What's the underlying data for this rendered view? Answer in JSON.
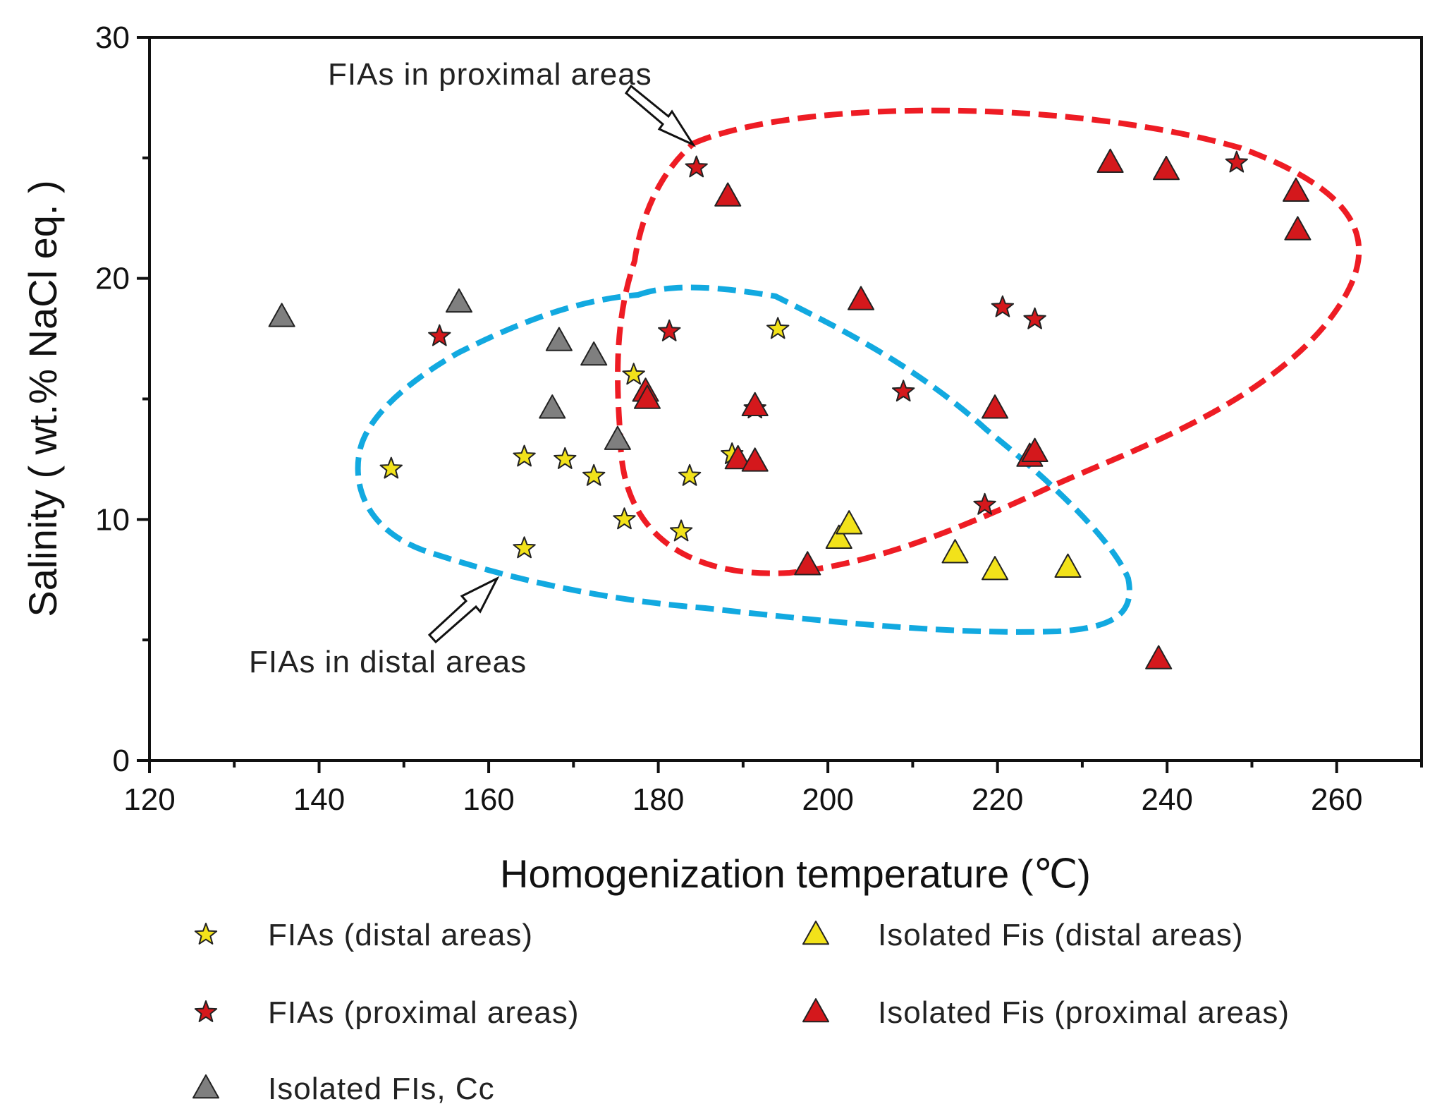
{
  "chart_data": {
    "type": "scatter",
    "xlabel": "Homogenization temperature (℃)",
    "ylabel": "Salinity ( wt.% NaCl eq. )",
    "xlim": [
      120,
      270
    ],
    "ylim": [
      0,
      30
    ],
    "xticks": [
      120,
      140,
      160,
      180,
      200,
      220,
      240,
      260
    ],
    "yticks": [
      0,
      10,
      20,
      30
    ],
    "xtick_labels": [
      "120",
      "140",
      "160",
      "180",
      "200",
      "220",
      "240",
      "260"
    ],
    "ytick_labels": [
      "0",
      "10",
      "20",
      "30"
    ],
    "annotations": {
      "proximal": "FIAs in proximal areas",
      "distal": "FIAs in distal areas"
    },
    "series": [
      {
        "name": "FIAs (distal areas)",
        "marker": "star",
        "color": "#f2e21a",
        "points": [
          [
            148.5,
            12.1
          ],
          [
            164.2,
            12.6
          ],
          [
            169.0,
            12.5
          ],
          [
            172.4,
            11.8
          ],
          [
            164.2,
            8.8
          ],
          [
            176.0,
            10.0
          ],
          [
            177.1,
            16.0
          ],
          [
            182.7,
            9.5
          ],
          [
            183.7,
            11.8
          ],
          [
            188.7,
            12.7
          ],
          [
            194.1,
            17.9
          ]
        ]
      },
      {
        "name": "FIAs (proximal areas)",
        "marker": "star",
        "color": "#d4181c",
        "points": [
          [
            154.2,
            17.6
          ],
          [
            181.3,
            17.8
          ],
          [
            184.5,
            24.6
          ],
          [
            191.4,
            14.6
          ],
          [
            208.9,
            15.3
          ],
          [
            218.5,
            10.6
          ],
          [
            220.6,
            18.8
          ],
          [
            224.4,
            18.3
          ],
          [
            248.2,
            24.8
          ]
        ]
      },
      {
        "name": "Isolated FIs, Cc",
        "marker": "triangle",
        "color": "#7f7f7f",
        "points": [
          [
            135.6,
            18.4
          ],
          [
            156.5,
            19.0
          ],
          [
            168.3,
            17.4
          ],
          [
            172.4,
            16.8
          ],
          [
            167.5,
            14.6
          ],
          [
            175.2,
            13.3
          ]
        ]
      },
      {
        "name": "Isolated Fis (distal areas)",
        "marker": "triangle",
        "color": "#f2e21a",
        "points": [
          [
            201.3,
            9.2
          ],
          [
            202.5,
            9.8
          ],
          [
            215.0,
            8.6
          ],
          [
            219.7,
            7.9
          ],
          [
            228.3,
            8.0
          ]
        ]
      },
      {
        "name": "Isolated Fis (proximal areas)",
        "marker": "triangle",
        "color": "#d4181c",
        "points": [
          [
            188.2,
            23.4
          ],
          [
            178.5,
            15.3
          ],
          [
            178.7,
            15.0
          ],
          [
            191.4,
            14.7
          ],
          [
            189.4,
            12.5
          ],
          [
            191.4,
            12.4
          ],
          [
            197.6,
            8.1
          ],
          [
            203.9,
            19.1
          ],
          [
            219.7,
            14.6
          ],
          [
            223.8,
            12.6
          ],
          [
            224.4,
            12.8
          ],
          [
            233.3,
            24.8
          ],
          [
            239.9,
            24.5
          ],
          [
            255.2,
            23.6
          ],
          [
            255.4,
            22.0
          ],
          [
            239.0,
            4.2
          ]
        ]
      }
    ]
  }
}
